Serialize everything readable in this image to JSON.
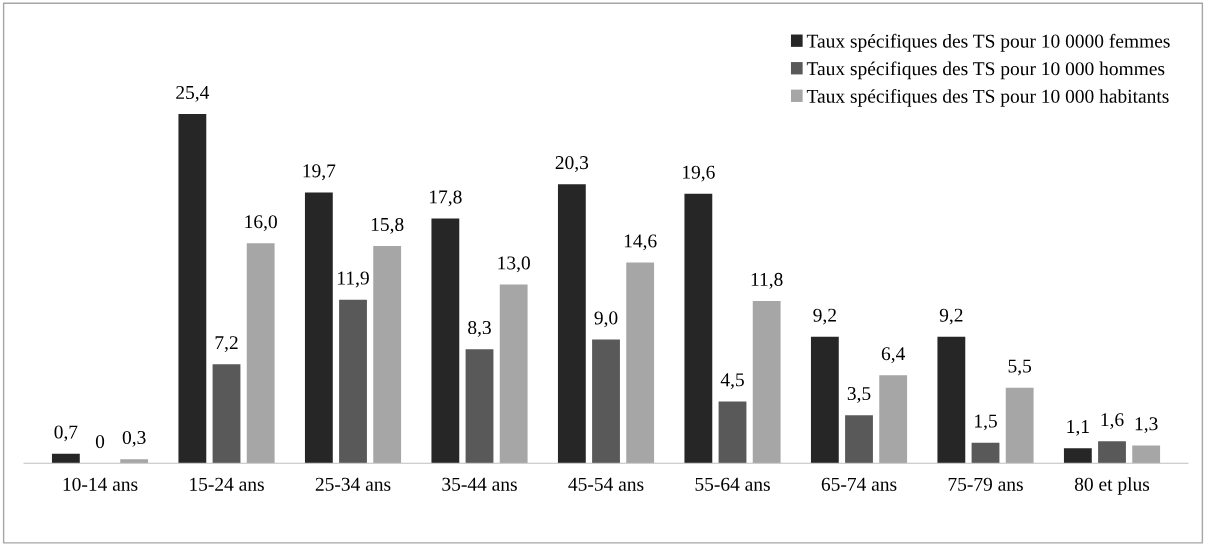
{
  "chart_data": {
    "type": "bar",
    "categories": [
      "10-14 ans",
      "15-24 ans",
      "25-34 ans",
      "35-44 ans",
      "45-54 ans",
      "55-64 ans",
      "65-74 ans",
      "75-79 ans",
      "80 et plus"
    ],
    "series": [
      {
        "name": "Taux spécifiques des TS pour 10 0000 femmes",
        "color": "#262626",
        "values": [
          0.7,
          25.4,
          19.7,
          17.8,
          20.3,
          19.6,
          9.2,
          9.2,
          1.1
        ],
        "value_labels": [
          "0,7",
          "25,4",
          "19,7",
          "17,8",
          "20,3",
          "19,6",
          "9,2",
          "9,2",
          "1,1"
        ]
      },
      {
        "name": "Taux spécifiques des TS pour 10 000 hommes",
        "color": "#595959",
        "values": [
          0,
          7.2,
          11.9,
          8.3,
          9.0,
          4.5,
          3.5,
          1.5,
          1.6
        ],
        "value_labels": [
          "0",
          "7,2",
          "11,9",
          "8,3",
          "9,0",
          "4,5",
          "3,5",
          "1,5",
          "1,6"
        ]
      },
      {
        "name": "Taux spécifiques des TS pour 10 000 habitants",
        "color": "#a6a6a6",
        "values": [
          0.3,
          16.0,
          15.8,
          13.0,
          14.6,
          11.8,
          6.4,
          5.5,
          1.3
        ],
        "value_labels": [
          "0,3",
          "16,0",
          "15,8",
          "13,0",
          "14,6",
          "11,8",
          "6,4",
          "5,5",
          "1,3"
        ]
      }
    ],
    "legend": "top right",
    "tick_labels": "x",
    "grid": false
  }
}
